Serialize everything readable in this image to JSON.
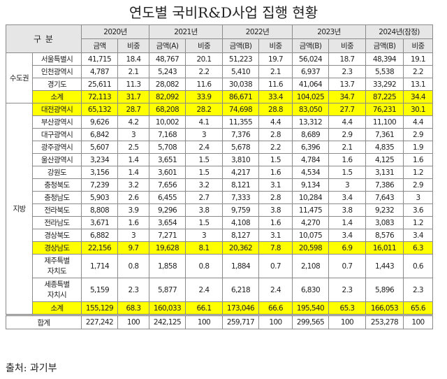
{
  "title": "연도별 국비R&D사업 집행 현황",
  "header": {
    "category": "구 분",
    "years": [
      "2020년",
      "2021년",
      "2022년",
      "2023년",
      "2024년(잠정)"
    ],
    "subheaders": [
      "금액",
      "비중",
      "금액(A)",
      "비중",
      "금액(B)",
      "비중",
      "금액(B)",
      "비중",
      "금액(B)",
      "비중"
    ]
  },
  "groups": {
    "capital": "수도권",
    "local": "지방"
  },
  "rows": [
    {
      "region": "서울특별시",
      "values": [
        "41,715",
        "18.4",
        "48,767",
        "20.1",
        "51,223",
        "19.7",
        "56,024",
        "18.7",
        "48,394",
        "19.1"
      ]
    },
    {
      "region": "인천광역시",
      "values": [
        "4,787",
        "2.1",
        "5,243",
        "2.2",
        "5,410",
        "2.1",
        "6,937",
        "2.3",
        "5,538",
        "2.2"
      ]
    },
    {
      "region": "경기도",
      "values": [
        "25,611",
        "11.3",
        "28,082",
        "11.6",
        "30,038",
        "11.6",
        "41,064",
        "13.7",
        "33,292",
        "13.1"
      ]
    },
    {
      "region": "소계",
      "values": [
        "72,113",
        "31.7",
        "82,092",
        "33.9",
        "86,671",
        "33.4",
        "104,025",
        "34.7",
        "87,225",
        "34.4"
      ]
    },
    {
      "region": "대전광역시",
      "values": [
        "65,132",
        "28.7",
        "68,208",
        "28.2",
        "74,698",
        "28.8",
        "83,050",
        "27.7",
        "76,231",
        "30.1"
      ]
    },
    {
      "region": "부산광역시",
      "values": [
        "9,626",
        "4.2",
        "10,002",
        "4.1",
        "11,355",
        "4.4",
        "13,312",
        "4.4",
        "11,100",
        "4.4"
      ]
    },
    {
      "region": "대구광역시",
      "values": [
        "6,842",
        "3",
        "7,168",
        "3",
        "7,376",
        "2.8",
        "8,689",
        "2.9",
        "7,361",
        "2.9"
      ]
    },
    {
      "region": "광주광역시",
      "values": [
        "5,607",
        "2.5",
        "5,708",
        "2.4",
        "5,678",
        "2.2",
        "6,396",
        "2.1",
        "4,835",
        "1.9"
      ]
    },
    {
      "region": "울산광역시",
      "values": [
        "3,234",
        "1.4",
        "3,651",
        "1.5",
        "3,810",
        "1.5",
        "4,784",
        "1.6",
        "4,125",
        "1.6"
      ]
    },
    {
      "region": "강원도",
      "values": [
        "3,156",
        "1.4",
        "3,601",
        "1.5",
        "4,217",
        "1.6",
        "4,534",
        "1.5",
        "3,131",
        "1.2"
      ]
    },
    {
      "region": "충청북도",
      "values": [
        "7,239",
        "3.2",
        "7,656",
        "3.2",
        "8,121",
        "3.1",
        "9,134",
        "3",
        "7,386",
        "2.9"
      ]
    },
    {
      "region": "충청남도",
      "values": [
        "5,903",
        "2.6",
        "6,455",
        "2.7",
        "7,333",
        "2.8",
        "10,284",
        "3.4",
        "7,643",
        "3"
      ]
    },
    {
      "region": "전라북도",
      "values": [
        "8,808",
        "3.9",
        "9,296",
        "3.8",
        "9,759",
        "3.8",
        "11,475",
        "3.8",
        "9,232",
        "3.6"
      ]
    },
    {
      "region": "전라남도",
      "values": [
        "3,671",
        "1.6",
        "3,654",
        "1.5",
        "4,108",
        "1.6",
        "4,270",
        "1.4",
        "3,083",
        "1.2"
      ]
    },
    {
      "region": "경상북도",
      "values": [
        "6,882",
        "3",
        "7,271",
        "3",
        "8,127",
        "3.1",
        "10,075",
        "3.4",
        "8,576",
        "3.4"
      ]
    },
    {
      "region": "경상남도",
      "values": [
        "22,156",
        "9.7",
        "19,628",
        "8.1",
        "20,362",
        "7.8",
        "20,598",
        "6.9",
        "16,011",
        "6.3"
      ]
    },
    {
      "region": "제주특별 자치도",
      "values": [
        "1,714",
        "0.8",
        "1,858",
        "0.8",
        "1,884",
        "0.7",
        "2,108",
        "0.7",
        "1,443",
        "0.6"
      ]
    },
    {
      "region": "세종특별 자치시",
      "values": [
        "5,159",
        "2.3",
        "5,877",
        "2.4",
        "6,218",
        "2.4",
        "6,830",
        "2.3",
        "5,896",
        "2.3"
      ]
    },
    {
      "region": "소계",
      "values": [
        "155,129",
        "68.3",
        "160,033",
        "66.1",
        "173,046",
        "66.6",
        "195,540",
        "65.3",
        "166,053",
        "65.6"
      ]
    }
  ],
  "total": {
    "label": "합계",
    "values": [
      "227,242",
      "100",
      "242,125",
      "100",
      "259,717",
      "100",
      "299,565",
      "100",
      "253,278",
      "100"
    ]
  },
  "highlight_color": "#ffff00",
  "source": "출처: 과기부"
}
